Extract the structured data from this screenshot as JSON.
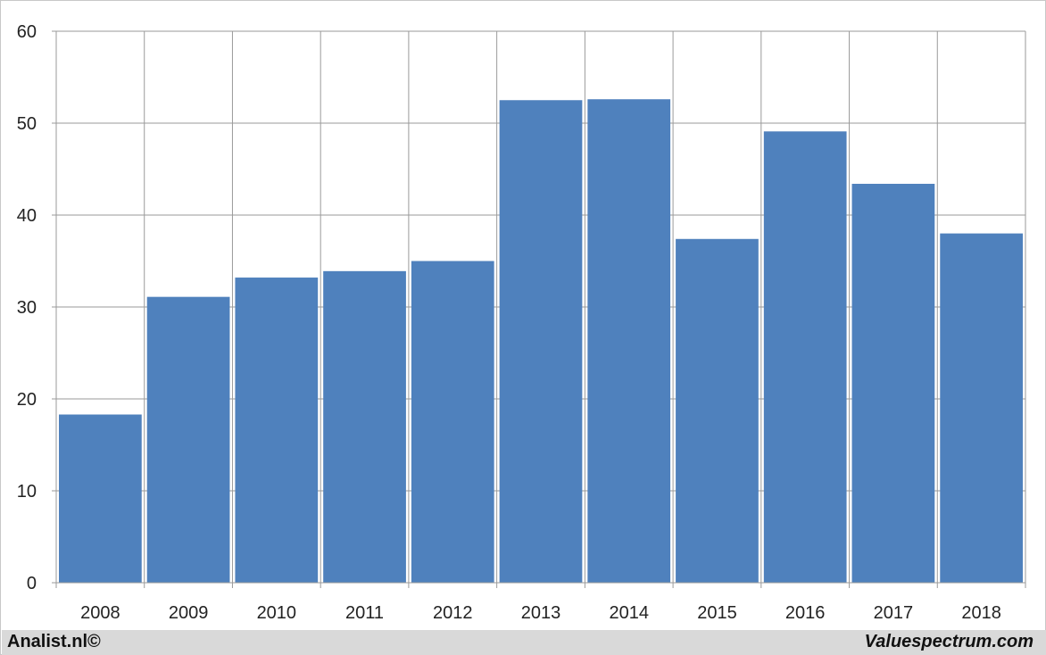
{
  "chart_data": {
    "type": "bar",
    "categories": [
      "2008",
      "2009",
      "2010",
      "2011",
      "2012",
      "2013",
      "2014",
      "2015",
      "2016",
      "2017",
      "2018"
    ],
    "values": [
      18.3,
      31.1,
      33.2,
      33.9,
      35.0,
      52.5,
      52.6,
      37.4,
      49.1,
      43.4,
      38.0
    ],
    "ylim": [
      0,
      60
    ],
    "yticks": [
      "0",
      "10",
      "20",
      "30",
      "40",
      "50",
      "60"
    ],
    "grid": true,
    "bar_color": "#4f81bd",
    "title": "",
    "xlabel": "",
    "ylabel": ""
  },
  "footer": {
    "left_label": "Analist.nl©",
    "right_label": "Valuespectrum.com"
  },
  "colors": {
    "footer_background": "#d9d9d9",
    "gridline": "#9a9a9a"
  }
}
